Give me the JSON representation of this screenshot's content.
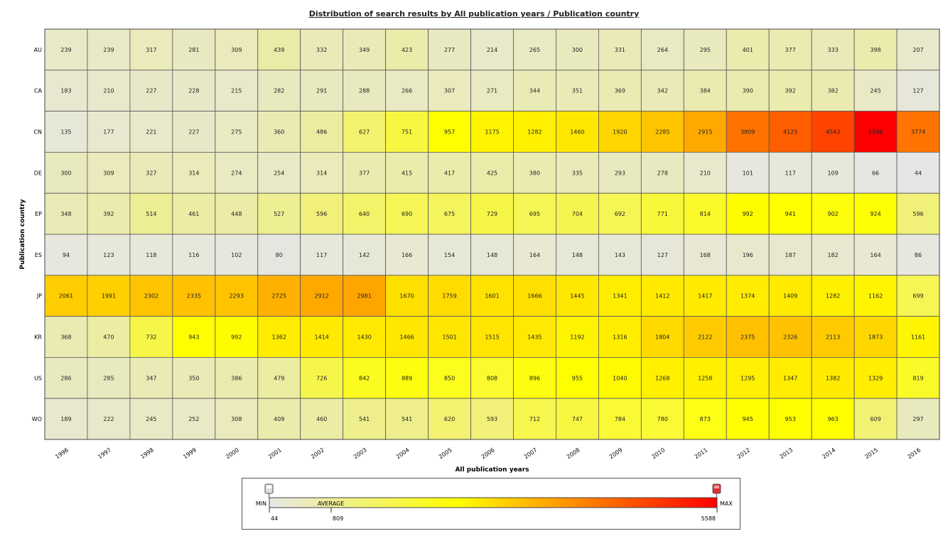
{
  "chart_data": {
    "type": "heatmap",
    "title": "Distribution of search results by All publication years / Publication country",
    "xlabel": "All publication years",
    "ylabel": "Publication country",
    "x": [
      "1996",
      "1997",
      "1998",
      "1999",
      "2000",
      "2001",
      "2002",
      "2003",
      "2004",
      "2005",
      "2006",
      "2007",
      "2008",
      "2009",
      "2010",
      "2011",
      "2012",
      "2013",
      "2014",
      "2015",
      "2016"
    ],
    "y": [
      "AU",
      "CA",
      "CN",
      "DE",
      "EP",
      "ES",
      "JP",
      "KR",
      "US",
      "WO"
    ],
    "values": [
      [
        239,
        239,
        317,
        281,
        309,
        439,
        332,
        349,
        423,
        277,
        214,
        265,
        300,
        331,
        264,
        295,
        401,
        377,
        333,
        398,
        207
      ],
      [
        183,
        210,
        227,
        228,
        215,
        282,
        291,
        288,
        266,
        307,
        271,
        344,
        351,
        369,
        342,
        384,
        390,
        392,
        382,
        245,
        127
      ],
      [
        135,
        177,
        221,
        227,
        275,
        360,
        486,
        627,
        751,
        957,
        1175,
        1282,
        1460,
        1920,
        2285,
        2915,
        3809,
        4125,
        4543,
        5588,
        3774
      ],
      [
        300,
        309,
        327,
        314,
        274,
        254,
        314,
        377,
        415,
        417,
        425,
        380,
        335,
        293,
        278,
        210,
        101,
        117,
        109,
        66,
        44
      ],
      [
        348,
        392,
        514,
        461,
        448,
        527,
        596,
        640,
        690,
        675,
        729,
        695,
        704,
        692,
        771,
        814,
        992,
        941,
        902,
        924,
        596
      ],
      [
        94,
        123,
        118,
        116,
        102,
        80,
        117,
        142,
        166,
        154,
        148,
        164,
        148,
        143,
        127,
        168,
        196,
        187,
        182,
        164,
        86
      ],
      [
        2061,
        1991,
        2302,
        2335,
        2293,
        2725,
        2912,
        2981,
        1670,
        1759,
        1601,
        1666,
        1445,
        1341,
        1412,
        1417,
        1374,
        1409,
        1282,
        1162,
        699
      ],
      [
        368,
        470,
        732,
        943,
        992,
        1362,
        1414,
        1430,
        1466,
        1501,
        1515,
        1435,
        1192,
        1316,
        1804,
        2122,
        2375,
        2326,
        2113,
        1873,
        1161
      ],
      [
        286,
        285,
        347,
        350,
        386,
        479,
        726,
        842,
        889,
        850,
        808,
        896,
        955,
        1040,
        1268,
        1258,
        1295,
        1347,
        1382,
        1329,
        819
      ],
      [
        189,
        222,
        245,
        252,
        308,
        409,
        460,
        541,
        541,
        620,
        593,
        712,
        747,
        784,
        780,
        873,
        945,
        953,
        963,
        609,
        297
      ]
    ],
    "legend": {
      "min_label": "MIN",
      "max_label": "MAX",
      "average_label": "AVERAGE",
      "min": 44,
      "average": 809,
      "max": 5588
    },
    "colors": {
      "low": "#e6e6e6",
      "mid": "#ffff00",
      "high": "#ff0000"
    }
  }
}
